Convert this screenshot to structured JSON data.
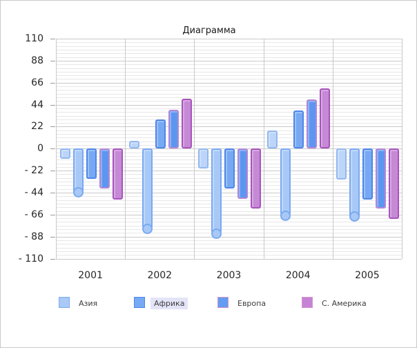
{
  "chart_data": {
    "type": "bar",
    "title": "Диаграмма",
    "categories": [
      "2001",
      "2002",
      "2003",
      "2004",
      "2005"
    ],
    "y_axis": {
      "min": -110,
      "max": 110,
      "tick_values": [
        110,
        88,
        66,
        44,
        22,
        0,
        -22,
        -44,
        -66,
        -88,
        -110
      ],
      "tick_labels": [
        "110",
        "88",
        "66",
        "44",
        "22",
        "0",
        "- 22",
        "- 44",
        "- 66",
        "- 88",
        "- 110"
      ],
      "minor_gridlines_per_major": 5
    },
    "series": [
      {
        "name": "Азия",
        "values": [
          -10,
          8,
          -20,
          18,
          -31
        ],
        "fill": "#bcd5f8",
        "border": "#93b8f0",
        "marker": null
      },
      {
        "name": "",
        "values": [
          -44,
          -80,
          -85,
          -67,
          -68
        ],
        "fill": "#a8c9f7",
        "border": "#7aa9f0",
        "marker": "circle"
      },
      {
        "name": "Африка",
        "values": [
          -30,
          29,
          -40,
          38,
          -51
        ],
        "fill": "#77a9f3",
        "border": "#4e86e8",
        "marker": null
      },
      {
        "name": "Европа",
        "values": [
          -40,
          39,
          -50,
          49,
          -60
        ],
        "fill": "#5d96f0",
        "border": "#b286d6",
        "marker": null
      },
      {
        "name": "С. Америка",
        "values": [
          -51,
          50,
          -60,
          60,
          -70
        ],
        "fill": "#c689d6",
        "border": "#a853bc",
        "marker": null
      }
    ],
    "legend": {
      "position": "bottom",
      "items": [
        {
          "label": "Азия",
          "fill": "#a9c9f7",
          "border": "#7fa8ee",
          "highlighted": false
        },
        {
          "label": "Африка",
          "fill": "#76a9f4",
          "border": "#4e86e8",
          "highlighted": true
        },
        {
          "label": "Европа",
          "fill": "#649cf2",
          "border": "#d892c8",
          "highlighted": false
        },
        {
          "label": "С. Америка",
          "fill": "#c583d6",
          "border": "#d892c8",
          "highlighted": false
        }
      ]
    },
    "grid": {
      "major_color": "#c9c9c9",
      "minor_color": "#e7e7e7",
      "vertical_lines": true
    }
  }
}
